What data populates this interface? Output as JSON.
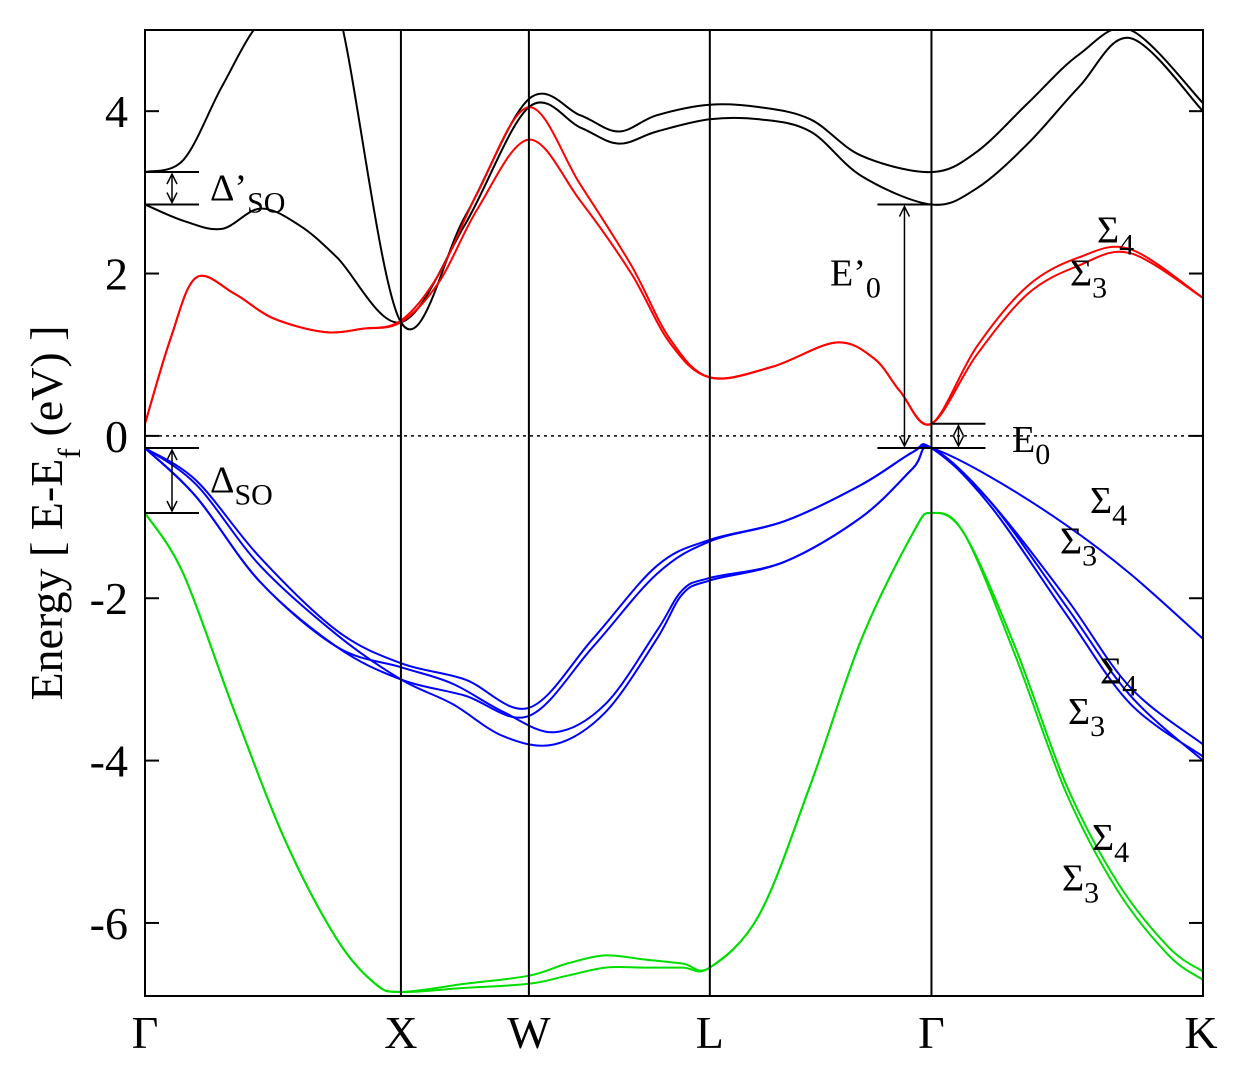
{
  "chart_data": {
    "type": "line",
    "title": "",
    "xlabel": "",
    "ylabel": {
      "main": "Energy [ E-E",
      "sub": "f",
      "tail": " (eV) ]"
    },
    "ylim": [
      -6.9,
      5.0
    ],
    "y_ticks": [
      -6,
      -4,
      -2,
      0,
      2,
      4
    ],
    "y_tick_labels": [
      "-6",
      "-4",
      "-2",
      "0",
      "2",
      "4"
    ],
    "k_path": [
      {
        "label": "Γ",
        "pos": 0.0
      },
      {
        "label": "X",
        "pos": 1.0
      },
      {
        "label": "W",
        "pos": 1.5
      },
      {
        "label": "L",
        "pos": 2.207
      },
      {
        "label": "Γ",
        "pos": 3.073
      },
      {
        "label": "K",
        "pos": 4.134
      }
    ],
    "fermi_level": 0,
    "series": [
      {
        "color": "#000000",
        "x": [
          0,
          0.15,
          0.3,
          0.45,
          0.6,
          0.75,
          1.0,
          1.25,
          1.5,
          1.7,
          1.85,
          2.0,
          2.207,
          2.4,
          2.6,
          2.8,
          3.073,
          3.25,
          3.45,
          3.65,
          3.85,
          4.134
        ],
        "y": [
          2.85,
          2.65,
          2.55,
          2.8,
          2.6,
          2.2,
          1.4,
          2.6,
          4.05,
          3.8,
          3.6,
          3.75,
          3.9,
          3.9,
          3.75,
          3.2,
          2.85,
          3.05,
          3.6,
          4.3,
          4.9,
          4.0
        ]
      },
      {
        "color": "#000000",
        "x": [
          0,
          0.15,
          0.3,
          0.45,
          0.6,
          0.75,
          1.0,
          1.25,
          1.5,
          1.7,
          1.85,
          2.0,
          2.207,
          2.4,
          2.6,
          2.8,
          3.073,
          3.25,
          3.45,
          3.65,
          3.85,
          4.134
        ],
        "y": [
          3.25,
          3.4,
          4.3,
          5.1,
          5.3,
          5.3,
          1.4,
          2.7,
          4.15,
          3.95,
          3.75,
          3.95,
          4.08,
          4.05,
          3.9,
          3.45,
          3.25,
          3.5,
          4.1,
          4.7,
          5.0,
          4.1
        ]
      },
      {
        "color": "#ff0000",
        "x": [
          0,
          0.1,
          0.2,
          0.35,
          0.5,
          0.7,
          0.85,
          1.0,
          1.15,
          1.3,
          1.5,
          1.7,
          1.9,
          2.05,
          2.207,
          2.45,
          2.7,
          2.85,
          2.95,
          3.073,
          3.25,
          3.45,
          3.65,
          3.85,
          4.134
        ],
        "y": [
          0.15,
          1.2,
          1.95,
          1.75,
          1.45,
          1.28,
          1.32,
          1.42,
          2.0,
          3.0,
          4.05,
          3.1,
          2.1,
          1.2,
          0.72,
          0.85,
          1.15,
          0.95,
          0.55,
          0.15,
          1.1,
          1.85,
          2.2,
          2.3,
          1.7
        ]
      },
      {
        "color": "#ff0000",
        "x": [
          0,
          0.1,
          0.2,
          0.35,
          0.5,
          0.7,
          0.85,
          1.0,
          1.15,
          1.3,
          1.5,
          1.7,
          1.9,
          2.05,
          2.207,
          2.45,
          2.7,
          2.85,
          2.95,
          3.073,
          3.25,
          3.45,
          3.65,
          3.85,
          4.134
        ],
        "y": [
          0.15,
          1.2,
          1.95,
          1.75,
          1.45,
          1.28,
          1.32,
          1.4,
          1.9,
          2.8,
          3.65,
          2.9,
          2.0,
          1.15,
          0.72,
          0.85,
          1.15,
          0.95,
          0.55,
          0.15,
          1.0,
          1.75,
          2.1,
          2.25,
          1.7
        ]
      },
      {
        "color": "#0000ff",
        "x": [
          0,
          0.2,
          0.45,
          0.75,
          1.0,
          1.25,
          1.5,
          1.75,
          2.0,
          2.207,
          2.5,
          2.8,
          3.0,
          3.073,
          3.3,
          3.6,
          3.85,
          4.134
        ],
        "y": [
          -0.15,
          -0.55,
          -1.5,
          -2.4,
          -2.8,
          -3.0,
          -3.35,
          -2.5,
          -1.6,
          -1.28,
          -1.05,
          -0.6,
          -0.2,
          -0.15,
          -0.5,
          -1.1,
          -1.7,
          -2.5
        ]
      },
      {
        "color": "#0000ff",
        "x": [
          0,
          0.2,
          0.45,
          0.75,
          1.0,
          1.25,
          1.5,
          1.75,
          2.0,
          2.207,
          2.5,
          2.8,
          3.0,
          3.073,
          3.3,
          3.6,
          3.85,
          4.134
        ],
        "y": [
          -0.15,
          -0.75,
          -1.8,
          -2.6,
          -3.0,
          -3.2,
          -3.45,
          -2.6,
          -1.7,
          -1.3,
          -1.05,
          -0.6,
          -0.2,
          -0.15,
          -0.8,
          -2.0,
          -3.1,
          -3.8
        ]
      },
      {
        "color": "#0000ff",
        "x": [
          0,
          0.2,
          0.45,
          0.75,
          1.0,
          1.2,
          1.4,
          1.6,
          1.8,
          2.0,
          2.1,
          2.207,
          2.5,
          2.8,
          3.0,
          3.073,
          3.3,
          3.6,
          3.85,
          4.134
        ],
        "y": [
          -0.15,
          -0.75,
          -1.8,
          -2.6,
          -2.85,
          -3.05,
          -3.4,
          -3.65,
          -3.3,
          -2.4,
          -1.9,
          -1.75,
          -1.55,
          -1.0,
          -0.4,
          -0.15,
          -0.8,
          -2.1,
          -3.2,
          -4.0
        ]
      },
      {
        "color": "#0000ff",
        "x": [
          0,
          0.2,
          0.45,
          0.75,
          1.0,
          1.2,
          1.4,
          1.6,
          1.8,
          2.0,
          2.1,
          2.207,
          2.5,
          2.8,
          3.0,
          3.073,
          3.3,
          3.6,
          3.85,
          4.134
        ],
        "y": [
          -0.15,
          -0.6,
          -1.6,
          -2.45,
          -3.0,
          -3.3,
          -3.7,
          -3.8,
          -3.4,
          -2.5,
          -1.95,
          -1.78,
          -1.55,
          -1.0,
          -0.4,
          -0.15,
          -0.85,
          -2.2,
          -3.3,
          -3.95
        ]
      },
      {
        "color": "#00dd00",
        "x": [
          0,
          0.15,
          0.35,
          0.55,
          0.75,
          0.9,
          1.0,
          1.25,
          1.5,
          1.65,
          1.8,
          1.95,
          2.1,
          2.207,
          2.4,
          2.6,
          2.8,
          3.0,
          3.073,
          3.2,
          3.4,
          3.6,
          3.8,
          4.0,
          4.134
        ],
        "y": [
          -0.95,
          -1.7,
          -3.4,
          -5.0,
          -6.2,
          -6.75,
          -6.85,
          -6.8,
          -6.75,
          -6.65,
          -6.55,
          -6.55,
          -6.55,
          -6.55,
          -5.9,
          -4.3,
          -2.5,
          -1.2,
          -0.95,
          -1.2,
          -2.7,
          -4.4,
          -5.6,
          -6.4,
          -6.7
        ]
      },
      {
        "color": "#00dd00",
        "x": [
          0,
          0.15,
          0.35,
          0.55,
          0.75,
          0.9,
          1.0,
          1.25,
          1.5,
          1.65,
          1.8,
          1.95,
          2.1,
          2.207,
          2.4,
          2.6,
          2.8,
          3.0,
          3.073,
          3.2,
          3.4,
          3.6,
          3.8,
          4.0,
          4.134
        ],
        "y": [
          -0.95,
          -1.7,
          -3.4,
          -5.0,
          -6.2,
          -6.75,
          -6.85,
          -6.75,
          -6.65,
          -6.5,
          -6.4,
          -6.45,
          -6.5,
          -6.55,
          -5.9,
          -4.3,
          -2.5,
          -1.2,
          -0.95,
          -1.2,
          -2.6,
          -4.3,
          -5.5,
          -6.3,
          -6.6
        ]
      }
    ],
    "annotations": {
      "delta_so_prime": {
        "main": "Δ’",
        "sub": "SO"
      },
      "delta_so": {
        "main": "Δ",
        "sub": "SO"
      },
      "e0_prime": {
        "main": "E’",
        "sub": "0"
      },
      "e0": {
        "main": "E",
        "sub": "0"
      },
      "sigma_labels": [
        {
          "main": "Σ",
          "sub": "4"
        },
        {
          "main": "Σ",
          "sub": "3"
        },
        {
          "main": "Σ",
          "sub": "4"
        },
        {
          "main": "Σ",
          "sub": "3"
        },
        {
          "main": "Σ",
          "sub": "4"
        },
        {
          "main": "Σ",
          "sub": "3"
        },
        {
          "main": "Σ",
          "sub": "4"
        },
        {
          "main": "Σ",
          "sub": "3"
        }
      ]
    },
    "grid": false
  }
}
